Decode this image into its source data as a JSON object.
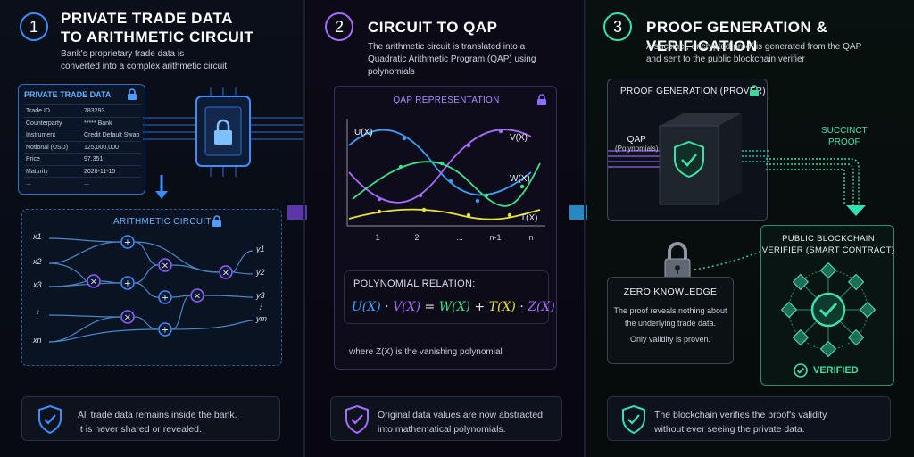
{
  "steps": [
    {
      "number": "1",
      "title_line1": "PRIVATE TRADE DATA",
      "title_line2": "TO ARITHMETIC CIRCUIT",
      "desc_line1": "Bank's proprietary trade data is",
      "desc_line2": "converted into a complex arithmetic circuit"
    },
    {
      "number": "2",
      "title_line1": "CIRCUIT TO QAP",
      "desc_line1": "The arithmetic circuit is translated into a",
      "desc_line2": "Quadratic Arithmetic Program (QAP) using polynomials"
    },
    {
      "number": "3",
      "title_line1": "PROOF GENERATION & VERIFICATION",
      "desc_line1": "A succinct, encrypted proof is generated from the QAP",
      "desc_line2": "and sent to the public blockchain verifier"
    }
  ],
  "trade_table": {
    "title": "PRIVATE TRADE DATA",
    "rows": [
      {
        "field": "Trade ID",
        "value": "783293"
      },
      {
        "field": "Counterparty",
        "value": "***** Bank"
      },
      {
        "field": "Instrument",
        "value": "Credit Default Swap"
      },
      {
        "field": "Notional (USD)",
        "value": "125,000,000"
      },
      {
        "field": "Price",
        "value": "97.351"
      },
      {
        "field": "Maturity",
        "value": "2028-11-15"
      },
      {
        "field": "...",
        "value": "..."
      }
    ]
  },
  "circuit": {
    "title": "ARITHMETIC CIRCUIT",
    "inputs": [
      "x1",
      "x2",
      "x3",
      "⋮",
      "xn"
    ],
    "outputs": [
      "y1",
      "y2",
      "y3",
      "⋮",
      "ym"
    ]
  },
  "qap": {
    "title": "QAP REPRESENTATION",
    "curve_labels": [
      "U(X)",
      "V(X)",
      "W(X)",
      "T(X)"
    ],
    "x_ticks": [
      "1",
      "2",
      "...",
      "n-1",
      "n"
    ],
    "relation_title": "POLYNOMIAL RELATION:",
    "relation": {
      "u": "U(X)",
      "dot1": "·",
      "v": "V(X)",
      "eq": "=",
      "w": "W(X)",
      "plus": "+",
      "t": "T(X)",
      "dot2": "·",
      "z": "Z(X)"
    },
    "footnote": "where Z(X) is the vanishing polynomial"
  },
  "prover": {
    "title": "PROOF GENERATION (PROVER)",
    "qap_label": "QAP",
    "qap_sub": "(Polynomials)"
  },
  "proof_label_line1": "SUCCINCT",
  "proof_label_line2": "PROOF",
  "zero_knowledge": {
    "title": "ZERO KNOWLEDGE",
    "line1": "The proof reveals nothing about",
    "line2": "the underlying trade data.",
    "line3": "Only validity is proven."
  },
  "verifier": {
    "title_line1": "PUBLIC BLOCKCHAIN",
    "title_line2": "VERIFIER (SMART CONTRACT)",
    "status": "VERIFIED"
  },
  "notes": [
    {
      "line1": "All trade data remains inside the bank.",
      "line2": "It is never shared or revealed."
    },
    {
      "line1": "Original data values are now abstracted",
      "line2": "into mathematical polynomials."
    },
    {
      "line1": "The blockchain verifies the proof's validity",
      "line2": "without ever seeing the private data."
    }
  ],
  "colors": {
    "step1": "#3b8cff",
    "step2": "#a56bff",
    "step3": "#33e0b0",
    "u": "#3aa0ff",
    "v": "#a86bff",
    "w": "#3fe08a",
    "t": "#e8e23a"
  },
  "icons": [
    "lock-icon",
    "chip-icon",
    "down-arrow-icon",
    "plus-gate-icon",
    "times-gate-icon",
    "right-arrow-icon",
    "shield-check-icon",
    "padlock-icon",
    "blockchain-node-icon",
    "check-circle-icon"
  ]
}
